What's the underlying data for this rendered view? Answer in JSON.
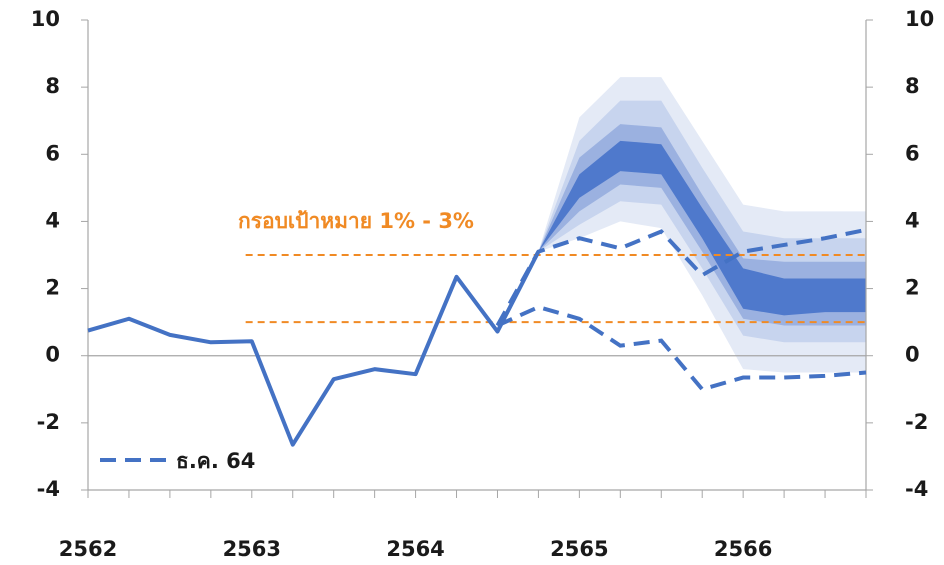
{
  "chart_data": {
    "type": "fan",
    "xlim": [
      0,
      19
    ],
    "xticks": [
      0,
      1,
      2,
      3,
      4,
      5,
      6,
      7,
      8,
      9,
      10,
      11,
      12,
      13,
      14,
      15,
      16,
      17,
      18,
      19
    ],
    "xlabels": [
      {
        "value": 0,
        "label": "2562"
      },
      {
        "value": 4,
        "label": "2563"
      },
      {
        "value": 8,
        "label": "2564"
      },
      {
        "value": 12,
        "label": "2565"
      },
      {
        "value": 16,
        "label": "2566"
      }
    ],
    "ylim": [
      -4,
      10
    ],
    "yticks": [
      -4,
      -2,
      0,
      2,
      4,
      6,
      8,
      10
    ],
    "y2lim": [
      -4,
      10
    ],
    "y2ticks": [
      -4,
      -2,
      0,
      2,
      4,
      6,
      8,
      10
    ],
    "actual": {
      "color": "#4472c4",
      "x": [
        0,
        1,
        2,
        3,
        4,
        5,
        6,
        7,
        8,
        9,
        10,
        11
      ],
      "values": [
        0.75,
        1.1,
        0.62,
        0.4,
        0.43,
        -2.65,
        -0.7,
        -0.4,
        -0.55,
        2.35,
        0.72,
        3.1
      ]
    },
    "series": [
      {
        "name": "ธ.ค. 64",
        "color": "#4472c4",
        "x": [
          10,
          11,
          12,
          13,
          14,
          15,
          16,
          17,
          18,
          19
        ],
        "upper": [
          0.9,
          3.1,
          3.5,
          3.2,
          3.7,
          2.4,
          3.1,
          3.3,
          3.5,
          3.75
        ],
        "lower": [
          0.9,
          1.45,
          1.1,
          0.3,
          0.45,
          -1.0,
          -0.65,
          -0.65,
          -0.6,
          -0.5
        ]
      }
    ],
    "fan": {
      "x": [
        11,
        12,
        13,
        14,
        15,
        16,
        17,
        18,
        19
      ],
      "bands": [
        {
          "color": "#e4eaf6",
          "lower": [
            3.1,
            3.5,
            4.0,
            3.8,
            1.8,
            -0.4,
            -0.5,
            -0.5,
            -0.5
          ],
          "upper": [
            3.1,
            7.1,
            8.3,
            8.3,
            6.4,
            4.5,
            4.3,
            4.3,
            4.3
          ]
        },
        {
          "color": "#c7d4ee",
          "lower": [
            3.1,
            3.9,
            4.6,
            4.5,
            2.6,
            0.6,
            0.4,
            0.4,
            0.4
          ],
          "upper": [
            3.1,
            6.4,
            7.6,
            7.6,
            5.6,
            3.7,
            3.5,
            3.5,
            3.5
          ]
        },
        {
          "color": "#9bb1e0",
          "lower": [
            3.1,
            4.3,
            5.1,
            5.0,
            3.1,
            1.1,
            0.9,
            0.9,
            0.9
          ],
          "upper": [
            3.1,
            5.9,
            6.9,
            6.8,
            4.8,
            2.9,
            2.8,
            2.8,
            2.8
          ]
        },
        {
          "color": "#4f79cc",
          "lower": [
            3.1,
            4.7,
            5.5,
            5.4,
            3.5,
            1.4,
            1.2,
            1.3,
            1.3
          ],
          "upper": [
            3.1,
            5.4,
            6.4,
            6.3,
            4.4,
            2.6,
            2.3,
            2.3,
            2.3
          ]
        }
      ]
    },
    "target": {
      "label": "กรอบเป้าหมาย 1% - 3%",
      "values": [
        1,
        3
      ],
      "color": "#f08a24",
      "xstart": 3.85
    }
  }
}
